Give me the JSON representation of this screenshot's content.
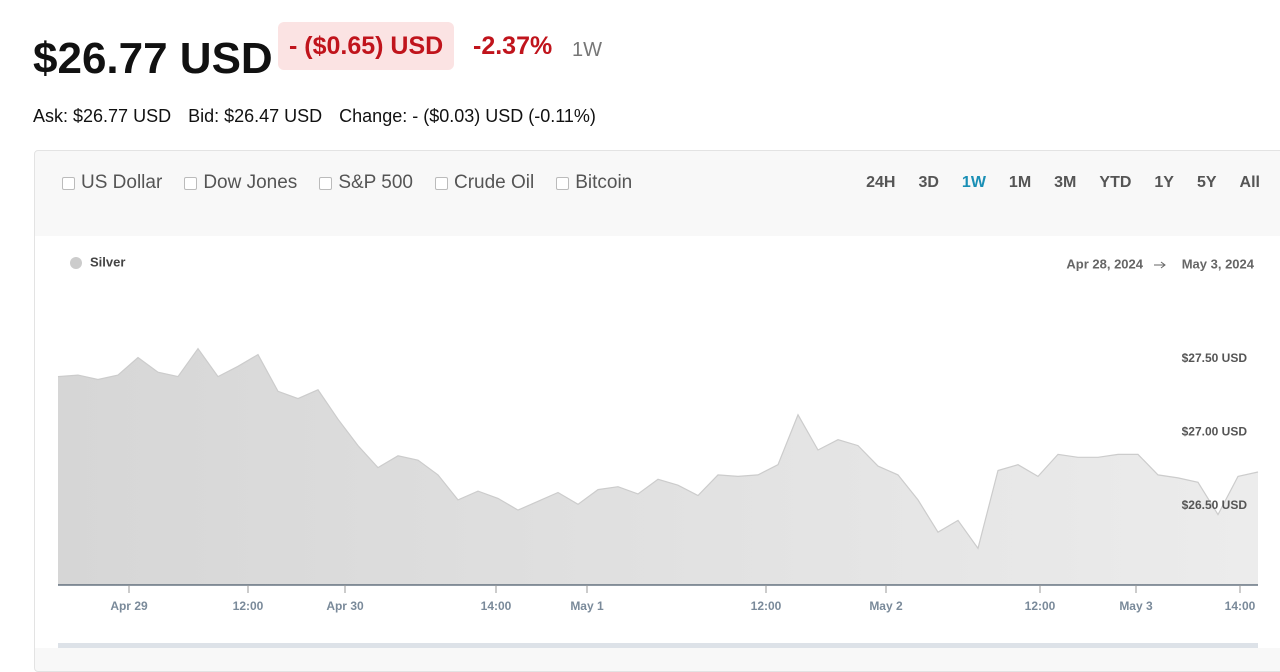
{
  "header": {
    "price": "$26.77 USD",
    "change": "- ($0.65) USD",
    "change_pct": "-2.37%",
    "period": "1W",
    "ask": "Ask: $26.77 USD",
    "bid": "Bid: $26.47 USD",
    "day_change": "Change: - ($0.03) USD (-0.11%)"
  },
  "compare": [
    "US Dollar",
    "Dow Jones",
    "S&P 500",
    "Crude Oil",
    "Bitcoin"
  ],
  "ranges": [
    "24H",
    "3D",
    "1W",
    "1M",
    "3M",
    "YTD",
    "1Y",
    "5Y",
    "All"
  ],
  "selected_range": 2,
  "chart_data": {
    "type": "area",
    "date_from": "Apr 28, 2024",
    "date_to": "May 3, 2024",
    "series": [
      {
        "name": "Silver",
        "color": "#cccccc",
        "x": [
          0,
          1,
          2,
          3,
          4,
          5,
          6,
          7,
          8,
          9,
          10,
          11,
          12,
          13,
          14,
          15,
          16,
          17,
          18,
          19,
          20,
          21,
          22,
          23,
          24,
          25,
          26,
          27,
          28,
          29,
          30,
          31,
          32,
          33,
          34,
          35,
          36,
          37,
          38,
          39,
          40,
          41,
          42,
          43,
          44,
          45,
          46,
          47,
          48,
          49,
          50,
          51,
          52,
          53,
          54,
          55,
          56,
          57,
          58,
          59,
          60
        ],
        "values": [
          27.38,
          27.39,
          27.36,
          27.39,
          27.51,
          27.41,
          27.38,
          27.57,
          27.38,
          27.45,
          27.53,
          27.28,
          27.23,
          27.29,
          27.09,
          26.91,
          26.76,
          26.84,
          26.81,
          26.71,
          26.54,
          26.6,
          26.55,
          26.47,
          26.53,
          26.59,
          26.51,
          26.61,
          26.63,
          26.58,
          26.68,
          26.64,
          26.57,
          26.71,
          26.7,
          26.71,
          26.78,
          27.12,
          26.88,
          26.95,
          26.91,
          26.77,
          26.71,
          26.54,
          26.32,
          26.4,
          26.21,
          26.74,
          26.78,
          26.7,
          26.85,
          26.83,
          26.83,
          26.85,
          26.85,
          26.71,
          26.69,
          26.66,
          26.44,
          26.7,
          26.73
        ]
      }
    ],
    "xlim": [
      0,
      60
    ],
    "xticks": [
      {
        "value": 3.55,
        "label": "Apr 29"
      },
      {
        "value": 9.5,
        "label": "12:00"
      },
      {
        "value": 14.35,
        "label": "Apr 30"
      },
      {
        "value": 21.9,
        "label": "14:00"
      },
      {
        "value": 26.45,
        "label": "May 1"
      },
      {
        "value": 35.4,
        "label": "12:00"
      },
      {
        "value": 41.4,
        "label": "May 2"
      },
      {
        "value": 49.1,
        "label": "12:00"
      },
      {
        "value": 53.9,
        "label": "May 3"
      },
      {
        "value": 59.1,
        "label": "14:00"
      }
    ],
    "ylim": [
      25.96,
      27.97
    ],
    "yticks": [
      {
        "value": 26.5,
        "label": "$26.50 USD"
      },
      {
        "value": 27,
        "label": "$27.00 USD"
      },
      {
        "value": 27.5,
        "label": "$27.50 USD"
      }
    ]
  }
}
